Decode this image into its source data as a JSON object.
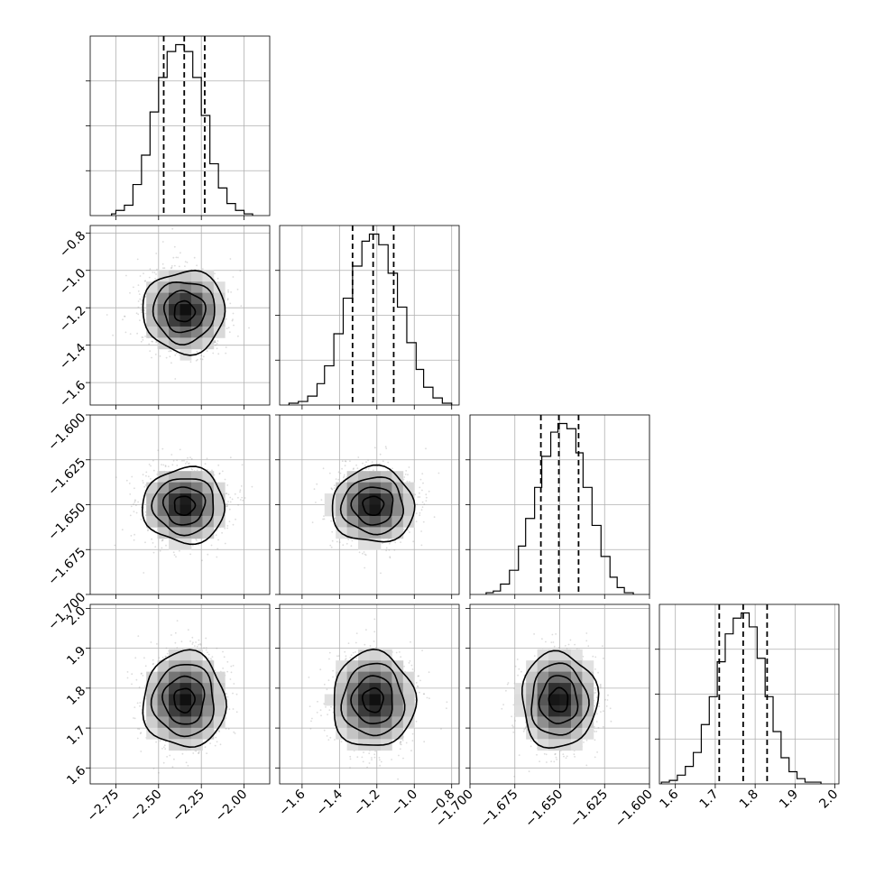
{
  "chart_data": {
    "type": "corner",
    "title": "",
    "parameters": [
      {
        "range": [
          -2.9,
          -1.85
        ],
        "ticks": [
          -2.75,
          -2.5,
          -2.25,
          -2.0
        ],
        "tick_labels": [
          "−2.75",
          "−2.50",
          "−2.25",
          "−2.00"
        ],
        "quantiles": [
          -2.47,
          -2.35,
          -2.23
        ],
        "mean": -2.35,
        "sigma": 0.12,
        "hist_counts": [
          1,
          3,
          6,
          18,
          35,
          60,
          80,
          95,
          99,
          95,
          80,
          58,
          30,
          16,
          7,
          3,
          1
        ],
        "hist_edges": [
          -2.775,
          -2.75,
          -2.7,
          -2.65,
          -2.6,
          -2.55,
          -2.5,
          -2.45,
          -2.4,
          -2.35,
          -2.3,
          -2.25,
          -2.2,
          -2.15,
          -2.1,
          -2.05,
          -2.0,
          -1.95
        ]
      },
      {
        "range": [
          -1.72,
          -0.76
        ],
        "ticks": [
          -1.6,
          -1.4,
          -1.2,
          -1.0,
          -0.8
        ],
        "tick_labels": [
          "−1.6",
          "−1.4",
          "−1.2",
          "−1.0",
          "−0.8"
        ],
        "quantiles": [
          -1.33,
          -1.22,
          -1.11
        ],
        "mean": -1.22,
        "sigma": 0.11,
        "hist_counts": [
          1,
          2,
          5,
          12,
          22,
          40,
          60,
          78,
          92,
          96,
          90,
          74,
          55,
          35,
          20,
          10,
          4,
          1
        ],
        "hist_edges": [
          -1.67,
          -1.62,
          -1.57,
          -1.52,
          -1.48,
          -1.43,
          -1.38,
          -1.33,
          -1.28,
          -1.24,
          -1.19,
          -1.14,
          -1.09,
          -1.04,
          -0.99,
          -0.95,
          -0.9,
          -0.85,
          -0.8
        ]
      },
      {
        "range": [
          -1.7,
          -1.6
        ],
        "ticks": [
          -1.7,
          -1.675,
          -1.65,
          -1.625,
          -1.6
        ],
        "tick_labels": [
          "−1.700",
          "−1.675",
          "−1.650",
          "−1.625",
          "−1.600"
        ],
        "quantiles": [
          -1.6605,
          -1.6505,
          -1.6395
        ],
        "mean": -1.6505,
        "sigma": 0.0105,
        "hist_counts": [
          1,
          2,
          6,
          14,
          28,
          44,
          62,
          80,
          94,
          99,
          96,
          82,
          62,
          40,
          22,
          10,
          4,
          1
        ],
        "hist_edges": [
          -1.691,
          -1.687,
          -1.683,
          -1.678,
          -1.673,
          -1.669,
          -1.664,
          -1.66,
          -1.655,
          -1.651,
          -1.646,
          -1.641,
          -1.637,
          -1.632,
          -1.627,
          -1.622,
          -1.618,
          -1.614,
          -1.609
        ]
      },
      {
        "range": [
          1.56,
          2.01
        ],
        "ticks": [
          1.6,
          1.7,
          1.8,
          1.9,
          2.0
        ],
        "tick_labels": [
          "1.6",
          "1.7",
          "1.8",
          "1.9",
          "2.0"
        ],
        "quantiles": [
          1.71,
          1.77,
          1.83
        ],
        "mean": 1.77,
        "sigma": 0.06,
        "hist_counts": [
          1,
          2,
          5,
          10,
          18,
          34,
          50,
          70,
          86,
          95,
          98,
          90,
          72,
          50,
          30,
          15,
          7,
          3,
          1
        ],
        "hist_edges": [
          1.565,
          1.585,
          1.605,
          1.625,
          1.645,
          1.665,
          1.685,
          1.705,
          1.725,
          1.745,
          1.765,
          1.785,
          1.805,
          1.825,
          1.845,
          1.865,
          1.885,
          1.905,
          1.925,
          1.965
        ]
      }
    ],
    "hist_y_ticks": 4,
    "scatter_color": "#9a9a9a",
    "contour_levels_sigma": [
      0.5,
      1.0,
      1.5,
      2.0
    ]
  }
}
